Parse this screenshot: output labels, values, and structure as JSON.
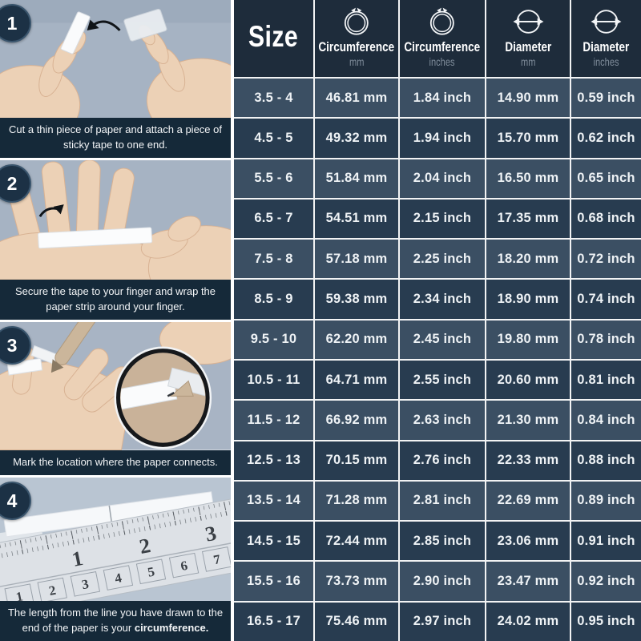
{
  "steps": [
    {
      "number": "1",
      "caption": "Cut a thin piece of paper and attach a piece of sticky tape to one end.",
      "caption_bold": ""
    },
    {
      "number": "2",
      "caption": "Secure the tape to your finger and wrap the paper strip around your finger.",
      "caption_bold": ""
    },
    {
      "number": "3",
      "caption": "Mark the location where the paper connects.",
      "caption_bold": ""
    },
    {
      "number": "4",
      "caption": "The length from the line you have drawn to the end of the paper is your ",
      "caption_bold": "circumference."
    }
  ],
  "illustrations": {
    "ruler_top": [
      "1",
      "2",
      "3"
    ],
    "ruler_bottom": [
      "1",
      "2",
      "3",
      "4",
      "5",
      "6",
      "7"
    ]
  },
  "table": {
    "size_header": "Size",
    "columns": [
      {
        "label": "Circumference",
        "unit": "mm",
        "icon": "ring-circumference-icon"
      },
      {
        "label": "Circumference",
        "unit": "inches",
        "icon": "ring-circumference-icon"
      },
      {
        "label": "Diameter",
        "unit": "mm",
        "icon": "diameter-icon"
      },
      {
        "label": "Diameter",
        "unit": "inches",
        "icon": "diameter-icon"
      }
    ],
    "rows": [
      {
        "size": "3.5 - 4",
        "circ_mm": "46.81 mm",
        "circ_in": "1.84 inch",
        "diam_mm": "14.90 mm",
        "diam_in": "0.59 inch"
      },
      {
        "size": "4.5 - 5",
        "circ_mm": "49.32 mm",
        "circ_in": "1.94 inch",
        "diam_mm": "15.70 mm",
        "diam_in": "0.62 inch"
      },
      {
        "size": "5.5 - 6",
        "circ_mm": "51.84 mm",
        "circ_in": "2.04 inch",
        "diam_mm": "16.50 mm",
        "diam_in": "0.65 inch"
      },
      {
        "size": "6.5 - 7",
        "circ_mm": "54.51 mm",
        "circ_in": "2.15 inch",
        "diam_mm": "17.35 mm",
        "diam_in": "0.68 inch"
      },
      {
        "size": "7.5 - 8",
        "circ_mm": "57.18 mm",
        "circ_in": "2.25 inch",
        "diam_mm": "18.20 mm",
        "diam_in": "0.72 inch"
      },
      {
        "size": "8.5 - 9",
        "circ_mm": "59.38 mm",
        "circ_in": "2.34 inch",
        "diam_mm": "18.90 mm",
        "diam_in": "0.74 inch"
      },
      {
        "size": "9.5 - 10",
        "circ_mm": "62.20 mm",
        "circ_in": "2.45 inch",
        "diam_mm": "19.80 mm",
        "diam_in": "0.78 inch"
      },
      {
        "size": "10.5 - 11",
        "circ_mm": "64.71 mm",
        "circ_in": "2.55 inch",
        "diam_mm": "20.60 mm",
        "diam_in": "0.81 inch"
      },
      {
        "size": "11.5 - 12",
        "circ_mm": "66.92 mm",
        "circ_in": "2.63 inch",
        "diam_mm": "21.30 mm",
        "diam_in": "0.84 inch"
      },
      {
        "size": "12.5 - 13",
        "circ_mm": "70.15 mm",
        "circ_in": "2.76 inch",
        "diam_mm": "22.33 mm",
        "diam_in": "0.88 inch"
      },
      {
        "size": "13.5 - 14",
        "circ_mm": "71.28 mm",
        "circ_in": "2.81 inch",
        "diam_mm": "22.69 mm",
        "diam_in": "0.89 inch"
      },
      {
        "size": "14.5 - 15",
        "circ_mm": "72.44 mm",
        "circ_in": "2.85 inch",
        "diam_mm": "23.06 mm",
        "diam_in": "0.91 inch"
      },
      {
        "size": "15.5 - 16",
        "circ_mm": "73.73 mm",
        "circ_in": "2.90 inch",
        "diam_mm": "23.47 mm",
        "diam_in": "0.92 inch"
      },
      {
        "size": "16.5 - 17",
        "circ_mm": "75.46 mm",
        "circ_in": "2.97 inch",
        "diam_mm": "24.02 mm",
        "diam_in": "0.95 inch"
      }
    ]
  },
  "colors": {
    "header_bg": "#1e2c3b",
    "row_light": "#3b4f63",
    "row_dark": "#283c50",
    "caption_bg": "#152939",
    "grid_line": "#f2f3f4",
    "photo_bg": "#a6b3c3"
  }
}
